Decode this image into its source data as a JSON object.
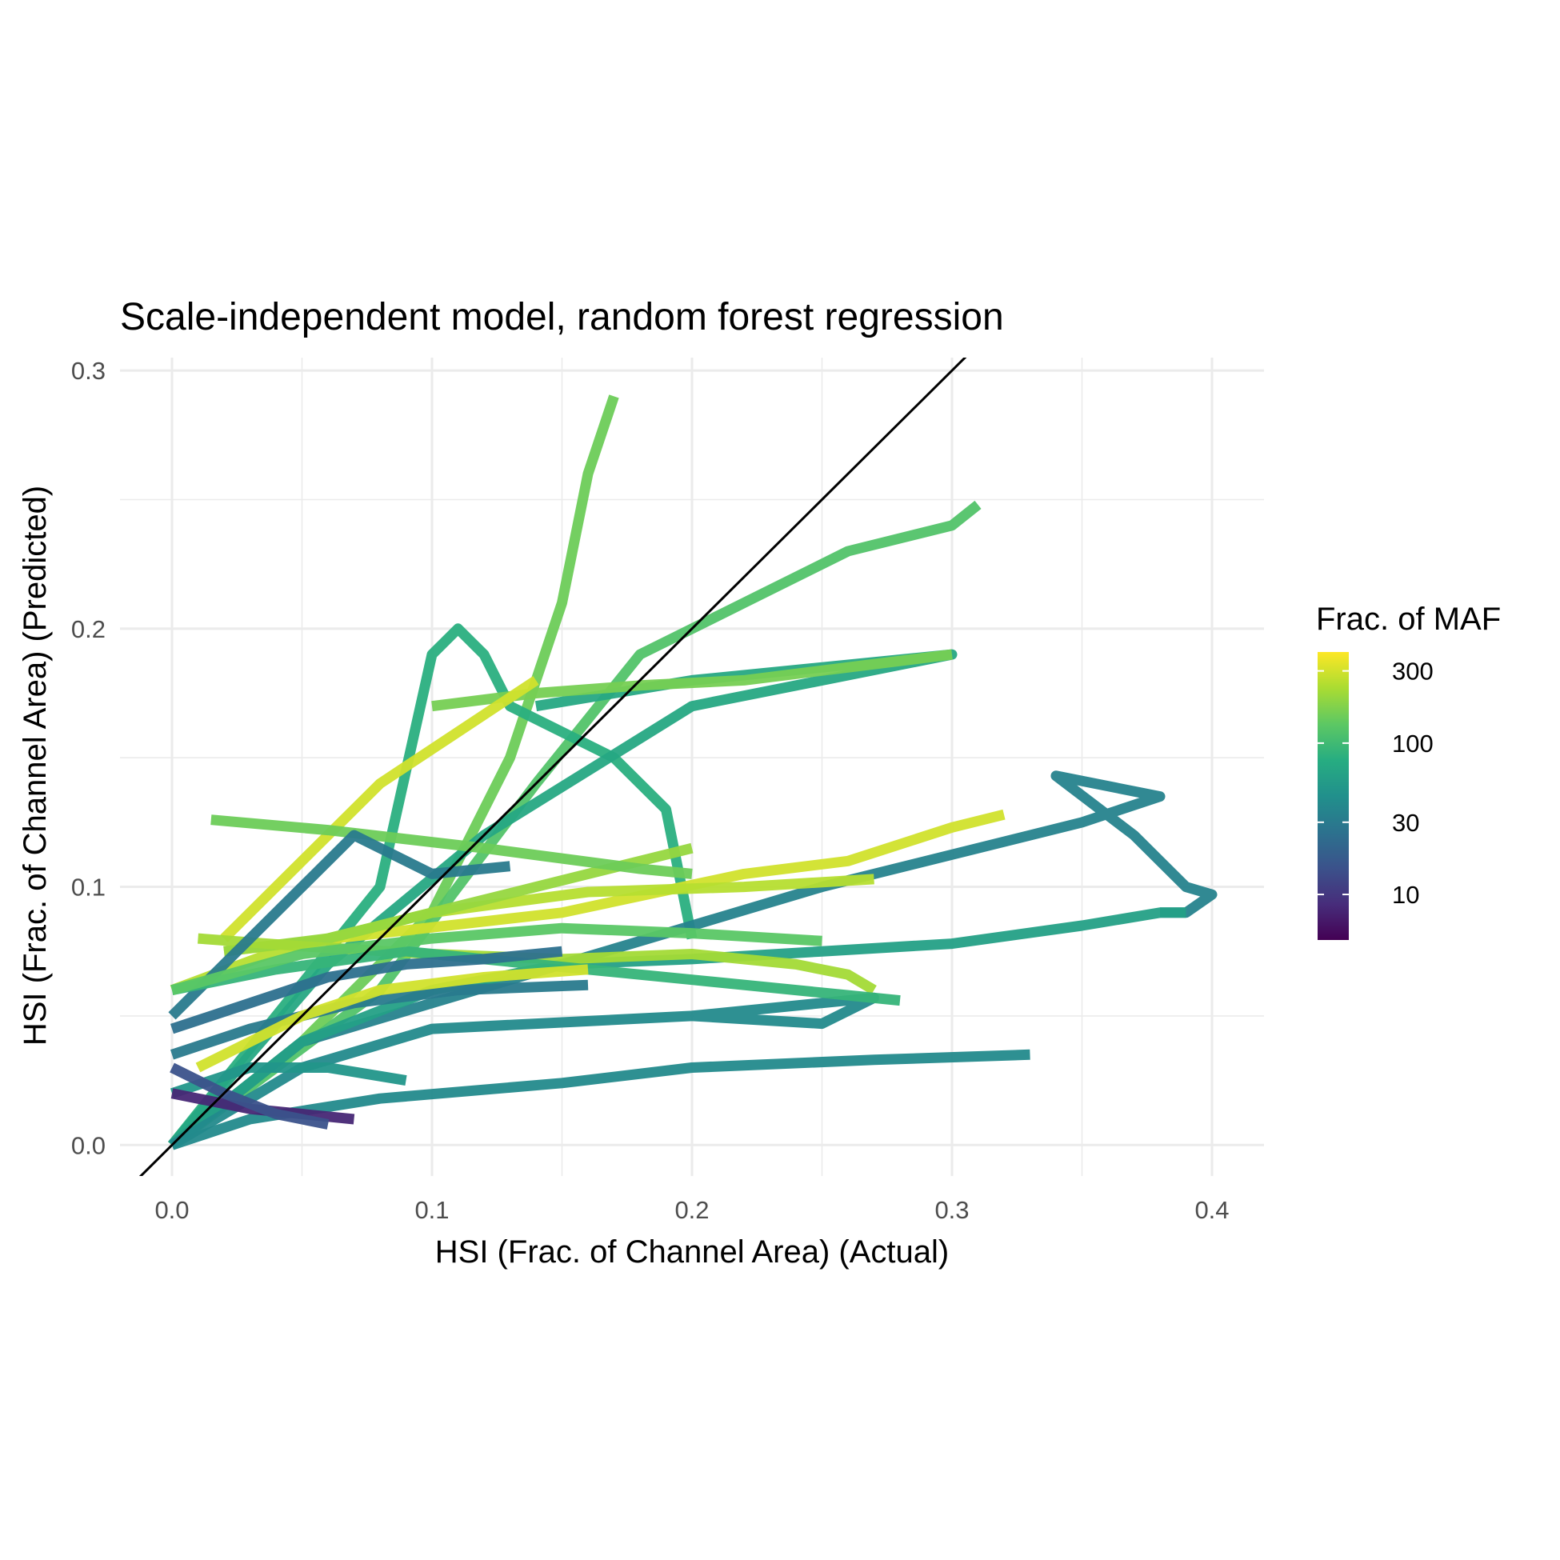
{
  "chart_data": {
    "type": "line",
    "title": "Scale-independent model, random forest regression",
    "xlabel": "HSI (Frac. of Channel Area) (Actual)",
    "ylabel": "HSI (Frac. of Channel Area) (Predicted)",
    "xlim": [
      -0.02,
      0.42
    ],
    "ylim": [
      -0.012,
      0.305
    ],
    "x_ticks": [
      0.0,
      0.1,
      0.2,
      0.3,
      0.4
    ],
    "x_tick_labels": [
      "0.0",
      "0.1",
      "0.2",
      "0.3",
      "0.4"
    ],
    "y_ticks": [
      0.0,
      0.1,
      0.2,
      0.3
    ],
    "y_tick_labels": [
      "0.0",
      "0.1",
      "0.2",
      "0.3"
    ],
    "grid": true,
    "reference_line": {
      "slope": 1,
      "intercept": 0,
      "color": "#000000"
    },
    "legend": {
      "title": "Frac. of MAF",
      "type": "colorbar",
      "scale": "log",
      "range": [
        5,
        400
      ],
      "ticks": [
        10,
        30,
        100,
        300
      ],
      "tick_labels": [
        "10",
        "30",
        "100",
        "300"
      ],
      "position": "right",
      "palette": [
        "#440154",
        "#472D7B",
        "#3B528B",
        "#2C728E",
        "#21908C",
        "#27AD81",
        "#5DC863",
        "#AADC32",
        "#FDE725"
      ]
    },
    "series": [
      {
        "maf": 150,
        "x": [
          0.0,
          0.05,
          0.1,
          0.13,
          0.15,
          0.16,
          0.17
        ],
        "y": [
          0.0,
          0.04,
          0.09,
          0.15,
          0.21,
          0.26,
          0.29
        ]
      },
      {
        "maf": 120,
        "x": [
          0.0,
          0.08,
          0.14,
          0.18,
          0.22,
          0.26,
          0.3,
          0.31
        ],
        "y": [
          0.0,
          0.06,
          0.14,
          0.19,
          0.21,
          0.23,
          0.24,
          0.248
        ]
      },
      {
        "maf": 80,
        "x": [
          0.0,
          0.04,
          0.08,
          0.1,
          0.11,
          0.12,
          0.13,
          0.17,
          0.19,
          0.2
        ],
        "y": [
          0.0,
          0.05,
          0.1,
          0.19,
          0.2,
          0.19,
          0.17,
          0.15,
          0.13,
          0.08
        ]
      },
      {
        "maf": 70,
        "x": [
          0.0,
          0.06,
          0.12,
          0.2,
          0.3,
          0.2,
          0.14
        ],
        "y": [
          0.0,
          0.07,
          0.12,
          0.17,
          0.19,
          0.18,
          0.17
        ]
      },
      {
        "maf": 160,
        "x": [
          0.1,
          0.14,
          0.18,
          0.22,
          0.3
        ],
        "y": [
          0.17,
          0.175,
          0.178,
          0.18,
          0.19
        ]
      },
      {
        "maf": 35,
        "x": [
          0.0,
          0.05,
          0.15,
          0.25,
          0.35,
          0.38,
          0.34,
          0.37,
          0.39,
          0.4,
          0.39,
          0.38
        ],
        "y": [
          0.0,
          0.04,
          0.07,
          0.1,
          0.125,
          0.135,
          0.143,
          0.12,
          0.1,
          0.097,
          0.09,
          0.09
        ]
      },
      {
        "maf": 60,
        "x": [
          0.0,
          0.05,
          0.1,
          0.15,
          0.2,
          0.25,
          0.3,
          0.35,
          0.38,
          0.39
        ],
        "y": [
          0.0,
          0.04,
          0.06,
          0.07,
          0.072,
          0.075,
          0.078,
          0.085,
          0.09,
          0.09
        ]
      },
      {
        "maf": 40,
        "x": [
          0.0,
          0.03,
          0.08,
          0.15,
          0.2,
          0.27,
          0.33
        ],
        "y": [
          0.0,
          0.01,
          0.018,
          0.024,
          0.03,
          0.033,
          0.035
        ]
      },
      {
        "maf": 40,
        "x": [
          0.0,
          0.05,
          0.1,
          0.2,
          0.27,
          0.25,
          0.2
        ],
        "y": [
          0.0,
          0.03,
          0.045,
          0.05,
          0.057,
          0.047,
          0.05
        ]
      },
      {
        "maf": 300,
        "x": [
          0.02,
          0.08,
          0.15,
          0.22,
          0.26,
          0.3,
          0.32
        ],
        "y": [
          0.075,
          0.082,
          0.09,
          0.105,
          0.11,
          0.123,
          0.128
        ]
      },
      {
        "maf": 250,
        "x": [
          0.0,
          0.04,
          0.1,
          0.16,
          0.22,
          0.27
        ],
        "y": [
          0.06,
          0.075,
          0.09,
          0.098,
          0.1,
          0.103
        ]
      },
      {
        "maf": 300,
        "x": [
          0.02,
          0.05,
          0.08,
          0.11,
          0.14
        ],
        "y": [
          0.08,
          0.11,
          0.14,
          0.16,
          0.18
        ]
      },
      {
        "maf": 200,
        "x": [
          0.02,
          0.06,
          0.1,
          0.14,
          0.18,
          0.2
        ],
        "y": [
          0.075,
          0.08,
          0.09,
          0.1,
          0.11,
          0.115
        ]
      },
      {
        "maf": 150,
        "x": [
          0.015,
          0.06,
          0.12,
          0.18,
          0.2
        ],
        "y": [
          0.126,
          0.122,
          0.115,
          0.107,
          0.105
        ]
      },
      {
        "maf": 220,
        "x": [
          0.01,
          0.05,
          0.1,
          0.15,
          0.2,
          0.24,
          0.26,
          0.27
        ],
        "y": [
          0.08,
          0.077,
          0.074,
          0.072,
          0.074,
          0.07,
          0.066,
          0.06
        ]
      },
      {
        "maf": 30,
        "x": [
          0.0,
          0.02,
          0.05,
          0.07,
          0.1,
          0.13
        ],
        "y": [
          0.05,
          0.07,
          0.1,
          0.12,
          0.105,
          0.108
        ]
      },
      {
        "maf": 90,
        "x": [
          0.0,
          0.04,
          0.09,
          0.14,
          0.2,
          0.26,
          0.28
        ],
        "y": [
          0.06,
          0.068,
          0.075,
          0.07,
          0.064,
          0.058,
          0.056
        ]
      },
      {
        "maf": 130,
        "x": [
          0.0,
          0.05,
          0.1,
          0.15,
          0.2,
          0.25
        ],
        "y": [
          0.06,
          0.074,
          0.08,
          0.084,
          0.082,
          0.079
        ]
      },
      {
        "maf": 25,
        "x": [
          0.0,
          0.03,
          0.06,
          0.09,
          0.12,
          0.15
        ],
        "y": [
          0.045,
          0.055,
          0.065,
          0.07,
          0.072,
          0.075
        ]
      },
      {
        "maf": 50,
        "x": [
          0.0,
          0.03,
          0.06,
          0.09
        ],
        "y": [
          0.02,
          0.03,
          0.03,
          0.025
        ]
      },
      {
        "maf": 8,
        "x": [
          0.0,
          0.01,
          0.03,
          0.05,
          0.07
        ],
        "y": [
          0.02,
          0.018,
          0.014,
          0.012,
          0.01
        ]
      },
      {
        "maf": 15,
        "x": [
          0.0,
          0.02,
          0.04,
          0.06
        ],
        "y": [
          0.03,
          0.02,
          0.012,
          0.008
        ]
      },
      {
        "maf": 30,
        "x": [
          0.0,
          0.03,
          0.07,
          0.11,
          0.16
        ],
        "y": [
          0.035,
          0.045,
          0.055,
          0.06,
          0.062
        ]
      },
      {
        "maf": 300,
        "x": [
          0.01,
          0.05,
          0.08,
          0.12,
          0.16
        ],
        "y": [
          0.03,
          0.05,
          0.06,
          0.065,
          0.068
        ]
      }
    ]
  }
}
